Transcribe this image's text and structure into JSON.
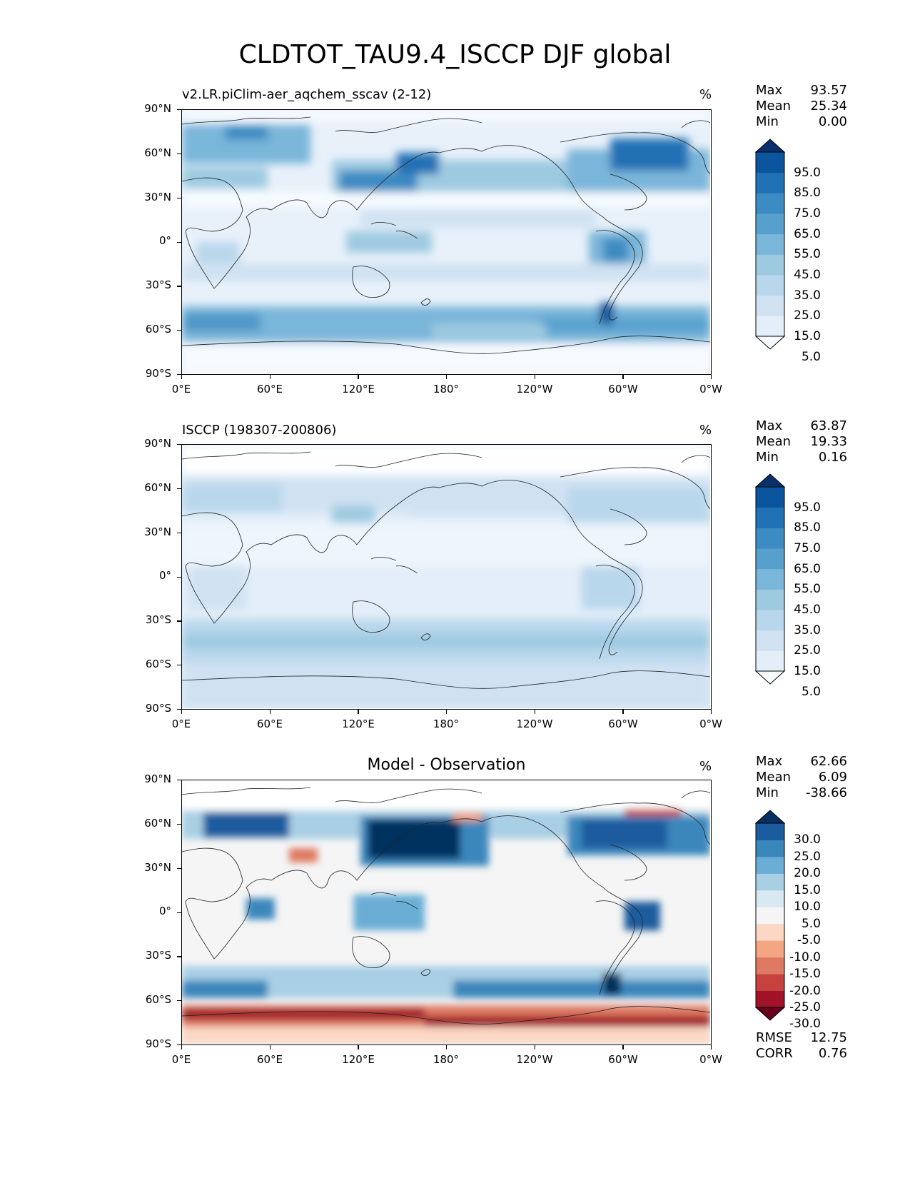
{
  "figure": {
    "title": "CLDTOT_TAU9.4_ISCCP DJF global"
  },
  "axes": {
    "lat_ticks": [
      "90°N",
      "60°N",
      "30°N",
      "0°",
      "30°S",
      "60°S",
      "90°S"
    ],
    "lon_ticks": [
      "0°E",
      "60°E",
      "120°E",
      "180°",
      "120°W",
      "60°W",
      "0°W"
    ]
  },
  "panels": [
    {
      "label": "v2.LR.piClim-aer_aqchem_sscav (2-12)",
      "title": "",
      "unit": "%",
      "stats": [
        {
          "name": "Max",
          "value": "93.57"
        },
        {
          "name": "Mean",
          "value": "25.34"
        },
        {
          "name": "Min",
          "value": "0.00"
        }
      ],
      "colorbar": {
        "labels": [
          "95.0",
          "85.0",
          "75.0",
          "65.0",
          "55.0",
          "45.0",
          "35.0",
          "25.0",
          "15.0",
          "5.0"
        ],
        "colors": [
          "#f7fbff",
          "#e3eef9",
          "#d0e2f2",
          "#b9d7ec",
          "#9ecae1",
          "#7ab6d9",
          "#57a0ce",
          "#3c8bc3",
          "#2171b5",
          "#0b559f",
          "#08306b"
        ]
      },
      "extra_stats": []
    },
    {
      "label": "ISCCP (198307-200806)",
      "title": "",
      "unit": "%",
      "stats": [
        {
          "name": "Max",
          "value": "63.87"
        },
        {
          "name": "Mean",
          "value": "19.33"
        },
        {
          "name": "Min",
          "value": "0.16"
        }
      ],
      "colorbar": {
        "labels": [
          "95.0",
          "85.0",
          "75.0",
          "65.0",
          "55.0",
          "45.0",
          "35.0",
          "25.0",
          "15.0",
          "5.0"
        ],
        "colors": [
          "#f7fbff",
          "#e3eef9",
          "#d0e2f2",
          "#b9d7ec",
          "#9ecae1",
          "#7ab6d9",
          "#57a0ce",
          "#3c8bc3",
          "#2171b5",
          "#0b559f",
          "#08306b"
        ]
      },
      "extra_stats": []
    },
    {
      "label": "",
      "title": "Model - Observation",
      "unit": "%",
      "stats": [
        {
          "name": "Max",
          "value": "62.66"
        },
        {
          "name": "Mean",
          "value": "6.09"
        },
        {
          "name": "Min",
          "value": "-38.66"
        }
      ],
      "colorbar": {
        "labels": [
          "30.0",
          "25.0",
          "20.0",
          "15.0",
          "10.0",
          "5.0",
          "-5.0",
          "-10.0",
          "-15.0",
          "-20.0",
          "-25.0",
          "-30.0"
        ],
        "colors": [
          "#67001f",
          "#a11228",
          "#c7423f",
          "#de7a63",
          "#f4a582",
          "#fbd7c4",
          "#f5f5f5",
          "#d9e9f1",
          "#a9cfe5",
          "#6aaed6",
          "#3a87bc",
          "#1b5c9e",
          "#053061"
        ]
      },
      "extra_stats": [
        {
          "name": "RMSE",
          "value": "12.75"
        },
        {
          "name": "CORR",
          "value": "0.76"
        }
      ]
    }
  ]
}
